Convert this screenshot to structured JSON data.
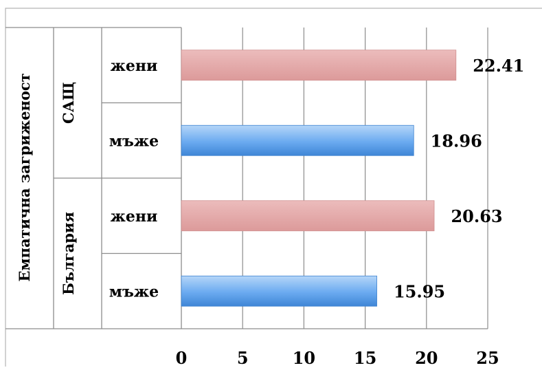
{
  "chart_data": {
    "type": "bar",
    "orientation": "horizontal",
    "title": "",
    "xlabel": "",
    "ylabel": "",
    "xlim": [
      0,
      25
    ],
    "x_ticks": [
      0,
      5,
      10,
      15,
      20,
      25
    ],
    "x_tick_labels": [
      "0",
      "5",
      "10",
      "15",
      "20",
      "25"
    ],
    "grid": true,
    "legend": "none",
    "group_axis_title": "Емпатична загриженост",
    "groups": [
      {
        "name": "САЩ",
        "categories": [
          "жени",
          "мъже"
        ],
        "values": [
          22.41,
          18.96
        ]
      },
      {
        "name": "България",
        "categories": [
          "жени",
          "мъже"
        ],
        "values": [
          20.63,
          15.95
        ]
      }
    ],
    "data_labels": [
      "22.41",
      "18.96",
      "20.63",
      "15.95"
    ],
    "colors": {
      "жени": "#e3a3a3",
      "мъже": "#5fa2e6"
    }
  }
}
